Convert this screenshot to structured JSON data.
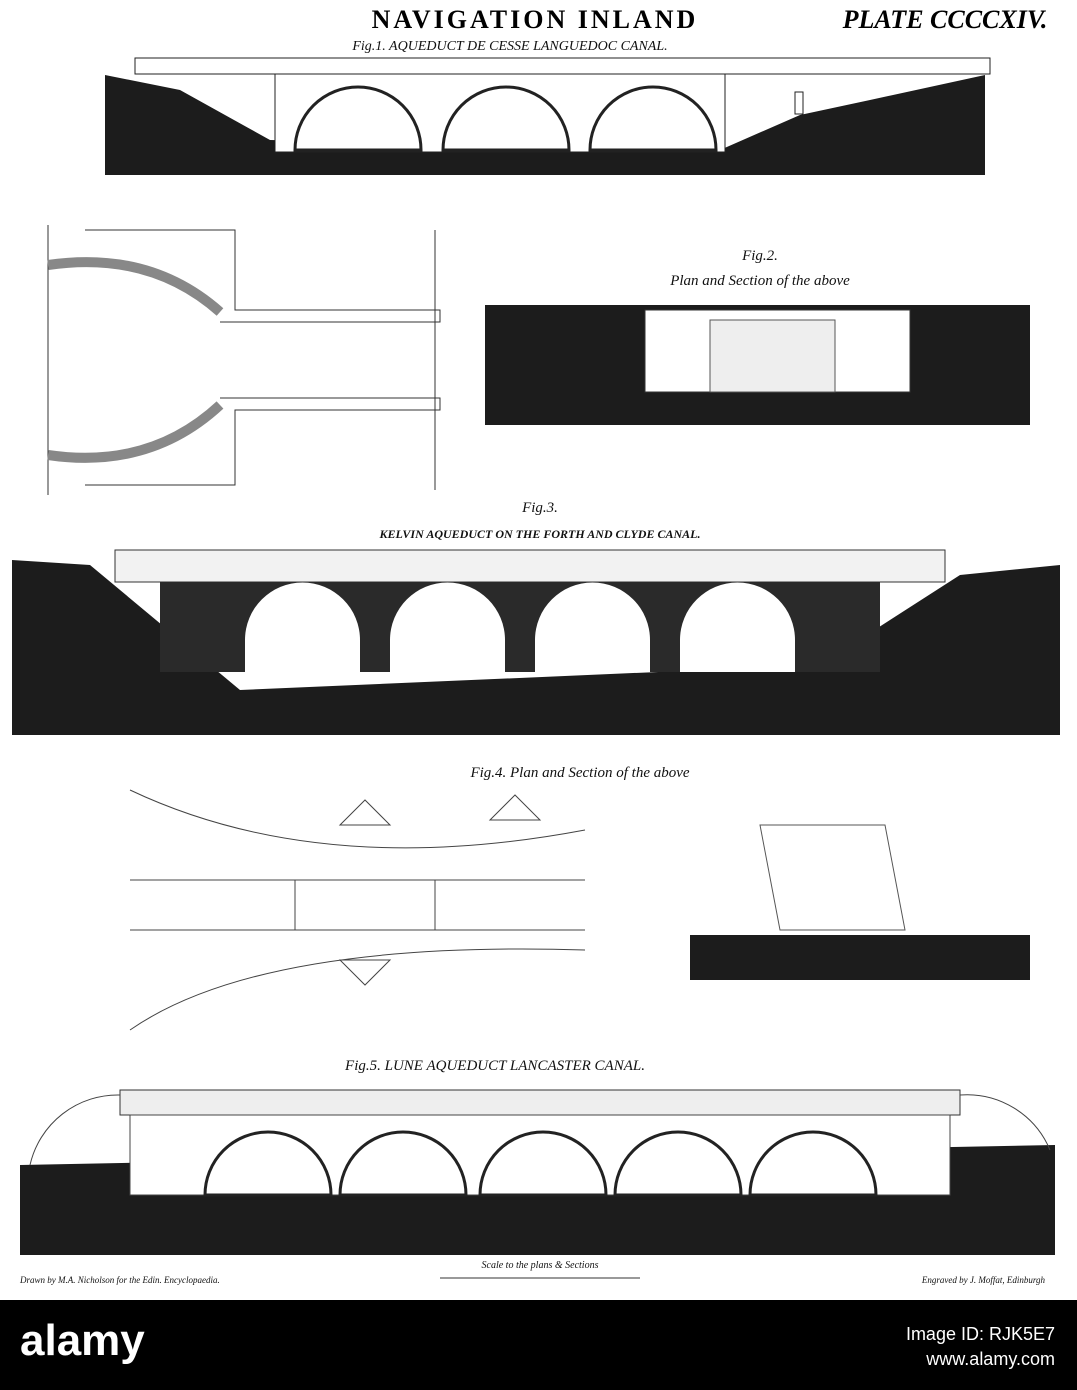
{
  "header": {
    "title": "NAVIGATION INLAND",
    "plate": "PLATE CCCCXIV."
  },
  "figures": [
    {
      "label": "Fig.1. AQUEDUCT DE CESSE LANGUEDOC CANAL."
    },
    {
      "label": "Fig.2.",
      "caption": "Plan and Section of the above"
    },
    {
      "label": "Fig.3.",
      "caption": "KELVIN AQUEDUCT ON THE FORTH AND CLYDE CANAL."
    },
    {
      "label": "Fig.4.  Plan and Section of the above"
    },
    {
      "label": "Fig.5. LUNE AQUEDUCT LANCASTER CANAL."
    }
  ],
  "scale": "Scale to the plans & Sections",
  "credits": {
    "drawn": "Drawn by M.A. Nicholson for the Edin. Encyclopaedia.",
    "engraved": "Engraved by J. Moffat, Edinburgh"
  },
  "footer": {
    "brand": "alamy",
    "image_id": "Image ID: RJK5E7",
    "url": "www.alamy.com"
  }
}
